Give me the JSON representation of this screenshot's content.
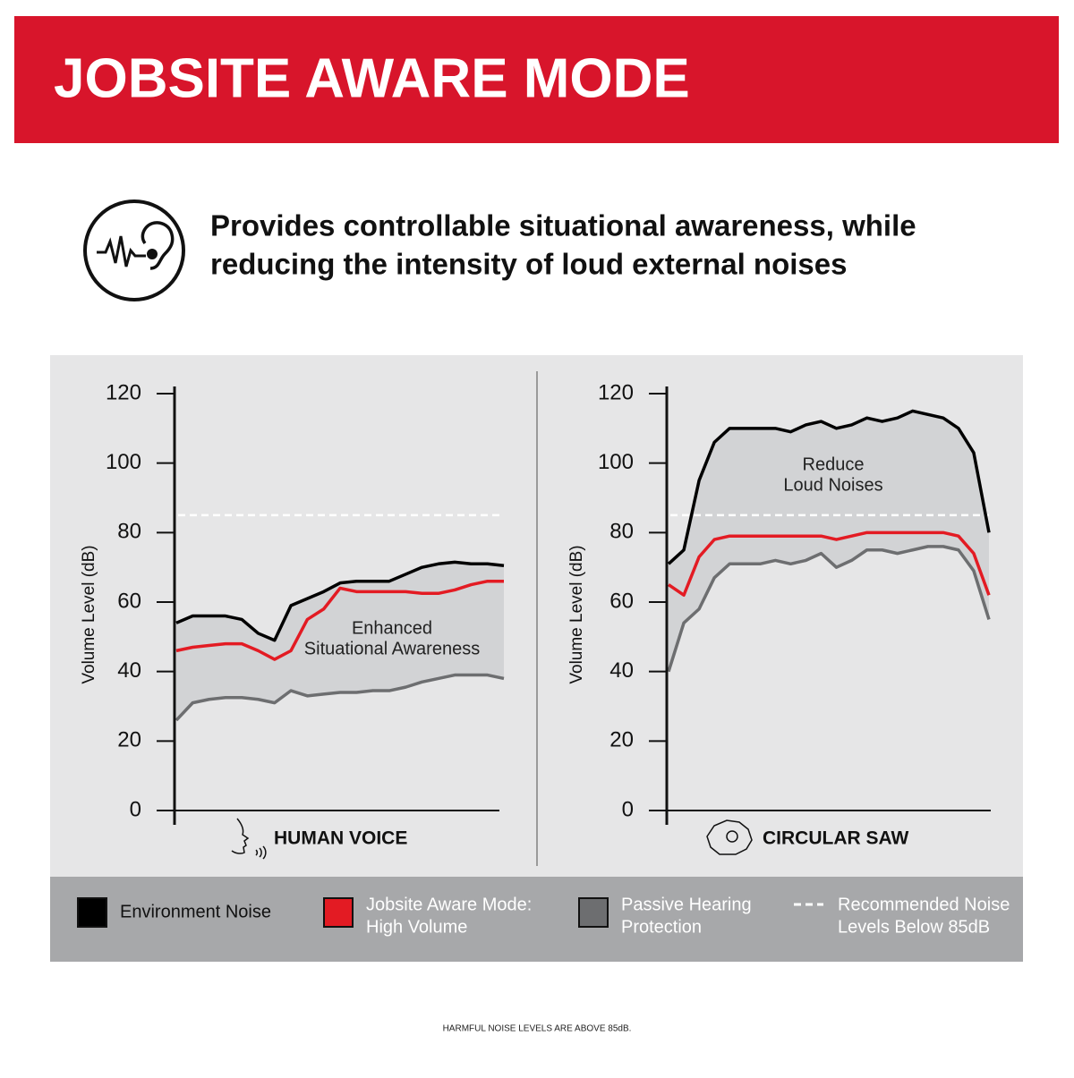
{
  "header": {
    "title": "JOBSITE AWARE MODE",
    "subtitle": [
      "Provides controllable situational awareness, while",
      "reducing the intensity of loud external noises"
    ]
  },
  "chart_data": [
    {
      "type": "line",
      "ylabel": "Volume Level (dB)",
      "xlabel": "HUMAN VOICE",
      "annotation": [
        "Enhanced",
        "Situational Awareness"
      ],
      "ylim": [
        0,
        120
      ],
      "yticks": [
        0,
        20,
        40,
        60,
        80,
        100,
        120
      ],
      "reference_line": 85,
      "series": [
        {
          "name": [
            "Environment Noise"
          ],
          "color": "#000000",
          "values": [
            54,
            56,
            56,
            56,
            55,
            51,
            49,
            59,
            61,
            63,
            65.5,
            66,
            66,
            66,
            68,
            70,
            71,
            71.5,
            71,
            71,
            70.5
          ]
        },
        {
          "name": [
            "Jobsite Aware Mode:",
            "High Volume"
          ],
          "color": "#e31b23",
          "values": [
            46,
            47,
            47.5,
            48,
            48,
            46,
            43.5,
            46,
            55,
            58,
            64,
            63,
            63,
            63,
            63,
            62.5,
            62.5,
            63.5,
            65,
            66,
            66
          ]
        },
        {
          "name": [
            "Passive Hearing",
            "Protection"
          ],
          "color": "#6d6e70",
          "values": [
            26,
            31,
            32,
            32.5,
            32.5,
            32,
            31,
            34.5,
            33,
            33.5,
            34,
            34,
            34.5,
            34.5,
            35.5,
            37,
            38,
            39,
            39,
            39,
            38
          ]
        }
      ]
    },
    {
      "type": "line",
      "ylabel": "Volume Level (dB)",
      "xlabel": "CIRCULAR SAW",
      "annotation": [
        "Reduce",
        "Loud Noises"
      ],
      "ylim": [
        0,
        120
      ],
      "yticks": [
        0,
        20,
        40,
        60,
        80,
        100,
        120
      ],
      "reference_line": 85,
      "series": [
        {
          "color": "#000000",
          "values": [
            71,
            75,
            95,
            106,
            110,
            110,
            110,
            110,
            109,
            111,
            112,
            110,
            111,
            113,
            112,
            113,
            115,
            114,
            113,
            110,
            103,
            80
          ]
        },
        {
          "color": "#e31b23",
          "values": [
            65,
            62,
            73,
            78,
            79,
            79,
            79,
            79,
            79,
            79,
            79,
            78,
            79,
            80,
            80,
            80,
            80,
            80,
            80,
            79,
            74,
            62
          ]
        },
        {
          "color": "#6d6e70",
          "values": [
            40,
            54,
            58,
            67,
            71,
            71,
            71,
            72,
            71,
            72,
            74,
            70,
            72,
            75,
            75,
            74,
            75,
            76,
            76,
            75,
            69,
            55
          ]
        }
      ]
    }
  ],
  "reference_label": [
    "Recommended Noise",
    "Levels Below 85dB"
  ],
  "footnote": "HARMFUL NOISE LEVELS ARE ABOVE 85dB."
}
